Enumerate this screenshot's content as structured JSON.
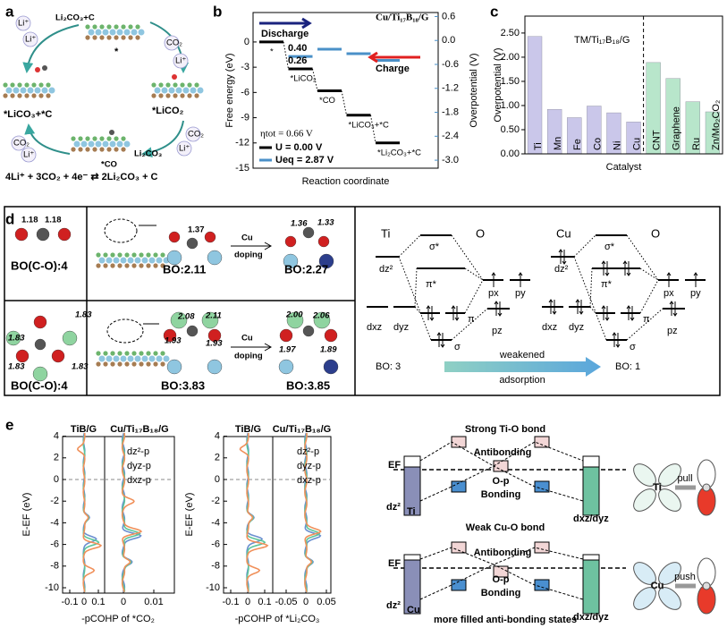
{
  "panel_labels": [
    "a",
    "b",
    "c",
    "d",
    "e"
  ],
  "panel_a": [
    "Li₂CO₃+C",
    "*",
    "*LiCO₂",
    "*CO",
    "Li₂CO₃",
    "*LiCO₃+*C",
    "4Li⁺ + 3CO₂ + 4e⁻ ⇄ 2Li₂CO₃ + C",
    "Li⁺",
    "Li⁺",
    "CO₂",
    "Li⁺",
    "CO₂",
    "Li⁺",
    "CO₂",
    "Li⁺"
  ],
  "chart_data": [
    {
      "type": "step",
      "title": "Cu/Ti₁₇B₁₈/G",
      "xlabel": "Reaction coordinate",
      "ylabel": "Free energy (eV)",
      "y2label": "Overpotential (V)",
      "categories": [
        "*",
        "*LiCO₂",
        "*CO",
        "*LiCO₃+*C",
        "*Li₂CO₃+*C"
      ],
      "series": [
        {
          "name": "U = 0.00 V",
          "color": "#000000",
          "values": [
            0,
            -3.2,
            -5.8,
            -8.7,
            -12
          ]
        },
        {
          "name": "Ueq = 2.87 V",
          "color": "#4a90c8",
          "axis": "y2",
          "values": [
            null,
            -0.4,
            -0.22,
            -0.33,
            -0.5
          ]
        }
      ],
      "ylim": [
        -15,
        3.5
      ],
      "yticks": [
        0,
        -3,
        -6,
        -9,
        -12,
        -15
      ],
      "y2lim": [
        -3.2,
        0.7
      ],
      "y2ticks": [
        0.6,
        {
          "value": 0,
          "label": "0.0"
        },
        -0.6,
        -1.2,
        -1.8,
        -2.4,
        {
          "value": -3,
          "label": "-3.0"
        }
      ],
      "annotations": [
        "Discharge",
        "Charge",
        "0.40",
        "0.26",
        "ηtot = 0.66 V"
      ]
    },
    {
      "type": "bar",
      "xlabel": "Catalyst",
      "ylabel": "Overpotential (V)",
      "annotation": "TM/Ti₁₇B₁₈/G",
      "categories": [
        "Ti",
        "Mn",
        "Fe",
        "Co",
        "Ni",
        "Cu",
        "CNT",
        "Graphene",
        "Ru",
        "Zn/Mo₂CO₂"
      ],
      "values": [
        2.43,
        0.92,
        0.75,
        0.99,
        0.85,
        0.66,
        1.89,
        1.56,
        1.08,
        0.87
      ],
      "colors": [
        "#cac7ea",
        "#cac7ea",
        "#cac7ea",
        "#cac7ea",
        "#cac7ea",
        "#cac7ea",
        "#b8e6cb",
        "#b8e6cb",
        "#b8e6cb",
        "#b8e6cb"
      ],
      "ylim": [
        0,
        2.85
      ],
      "yticks": [
        {
          "value": 0,
          "label": "0.00"
        },
        {
          "value": 0.5,
          "label": "0.50"
        },
        {
          "value": 1,
          "label": "1.00"
        },
        {
          "value": 1.5,
          "label": "1.50"
        },
        {
          "value": 2,
          "label": "2.00"
        },
        {
          "value": 2.5,
          "label": "2.50"
        }
      ]
    }
  ],
  "panel_d": {
    "structures": [
      "1.18",
      "1.18",
      "BO(C-O):4",
      "1.37",
      "Cu",
      "doping",
      "BO:2.11",
      "1.36",
      "1.33",
      "BO:2.27",
      "1.83",
      "1.83",
      "1.83",
      "1.83",
      "BO(C-O):4",
      "2.08",
      "2.11",
      "1.93",
      "1.93",
      "Cu",
      "doping",
      "BO:3.83",
      "2.00",
      "2.06",
      "1.97",
      "1.89",
      "BO:3.85"
    ],
    "orbital": [
      "Ti",
      "O",
      "σ*",
      "π*",
      "dz²",
      "dxz",
      "dyz",
      "π",
      "σ",
      "px",
      "py",
      "pz",
      "Cu",
      "O",
      "σ*",
      "π*",
      "dz²",
      "dxz",
      "dyz",
      "π",
      "σ",
      "px",
      "py",
      "pz",
      "BO: 3",
      "weakened",
      "adsorption",
      "BO: 1"
    ]
  },
  "panel_e": {
    "plots": [
      {
        "title": "TiB/G",
        "xticks": [
          -0.1,
          0,
          0.1
        ]
      },
      {
        "title": "Cu/Ti₁₇B₁₈/G",
        "xticks": [
          0,
          0.01
        ]
      },
      {
        "title": "TiB/G",
        "xticks": [
          -0.1,
          0,
          0.1
        ]
      },
      {
        "title": "Cu/Ti₁₇B₁₈/G",
        "xticks": [
          -0.05,
          0,
          0.05
        ]
      }
    ],
    "yticks": [
      4,
      2,
      0,
      -2,
      -4,
      -6,
      -8,
      -10
    ],
    "ylabel": "E-EF (eV)",
    "xlabels": [
      "-pCOHP of *CO₂",
      "-pCOHP of *Li₂CO₃"
    ],
    "legend": [
      "dz²-p",
      "dyz-p",
      "dxz-p"
    ],
    "schematic": [
      [
        "Strong Ti-O bond",
        "EF",
        "Antibonding",
        "O-p",
        "Bonding",
        "dz²",
        "Ti",
        "dxz/dyz",
        "pull",
        "Ti"
      ],
      [
        "Weak Cu-O bond",
        "EF",
        "Antibonding",
        "O-p",
        "Bonding",
        "dz²",
        "Cu",
        "dxz/dyz",
        "push",
        "Cu"
      ]
    ],
    "note": "more filled anti-bonding states"
  }
}
